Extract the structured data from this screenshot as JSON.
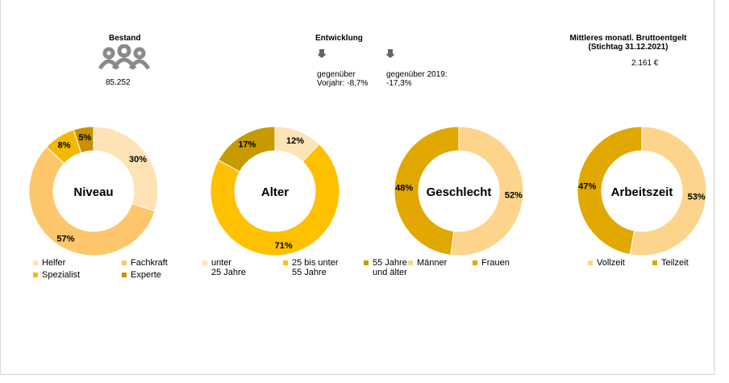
{
  "header": {
    "bestand": {
      "title": "Bestand",
      "value": "85.252"
    },
    "entwicklung": {
      "title": "Entwicklung",
      "items": [
        [
          "gegenüber",
          "Vorjahr: -8,7%"
        ],
        [
          "gegenüber 2019:",
          "-17,3%"
        ]
      ]
    },
    "entgelt": {
      "title": [
        "Mittleres monatl. Bruttoentgelt",
        "(Stichtag 31.12.2021)"
      ],
      "value": "2.161 €"
    }
  },
  "chart_data": [
    {
      "type": "donut",
      "title": "Niveau",
      "categories": [
        "Helfer",
        "Fachkraft",
        "Spezialist",
        "Experte"
      ],
      "values": [
        30,
        57,
        8,
        5
      ],
      "value_labels": [
        "30%",
        "57%",
        "8%",
        "5%"
      ],
      "colors": [
        "#fde3b6",
        "#fdc66a",
        "#f5b800",
        "#c69200"
      ]
    },
    {
      "type": "donut",
      "title": "Alter",
      "categories": [
        "unter\n25 Jahre",
        "25 bis unter\n55 Jahre",
        "55 Jahre\nund älter"
      ],
      "values": [
        12,
        71,
        17
      ],
      "value_labels": [
        "12%",
        "71%",
        "17%"
      ],
      "colors": [
        "#fde3b6",
        "#ffc000",
        "#c69a00"
      ]
    },
    {
      "type": "donut",
      "title": "Geschlecht",
      "categories": [
        "Männer",
        "Frauen"
      ],
      "values": [
        52,
        48
      ],
      "value_labels": [
        "52%",
        "48%"
      ],
      "colors": [
        "#fdd48c",
        "#e0a800"
      ]
    },
    {
      "type": "donut",
      "title": "Arbeitszeit",
      "categories": [
        "Vollzeit",
        "Teilzeit"
      ],
      "values": [
        53,
        47
      ],
      "value_labels": [
        "53%",
        "47%"
      ],
      "colors": [
        "#fdd48c",
        "#e0a800"
      ]
    }
  ]
}
